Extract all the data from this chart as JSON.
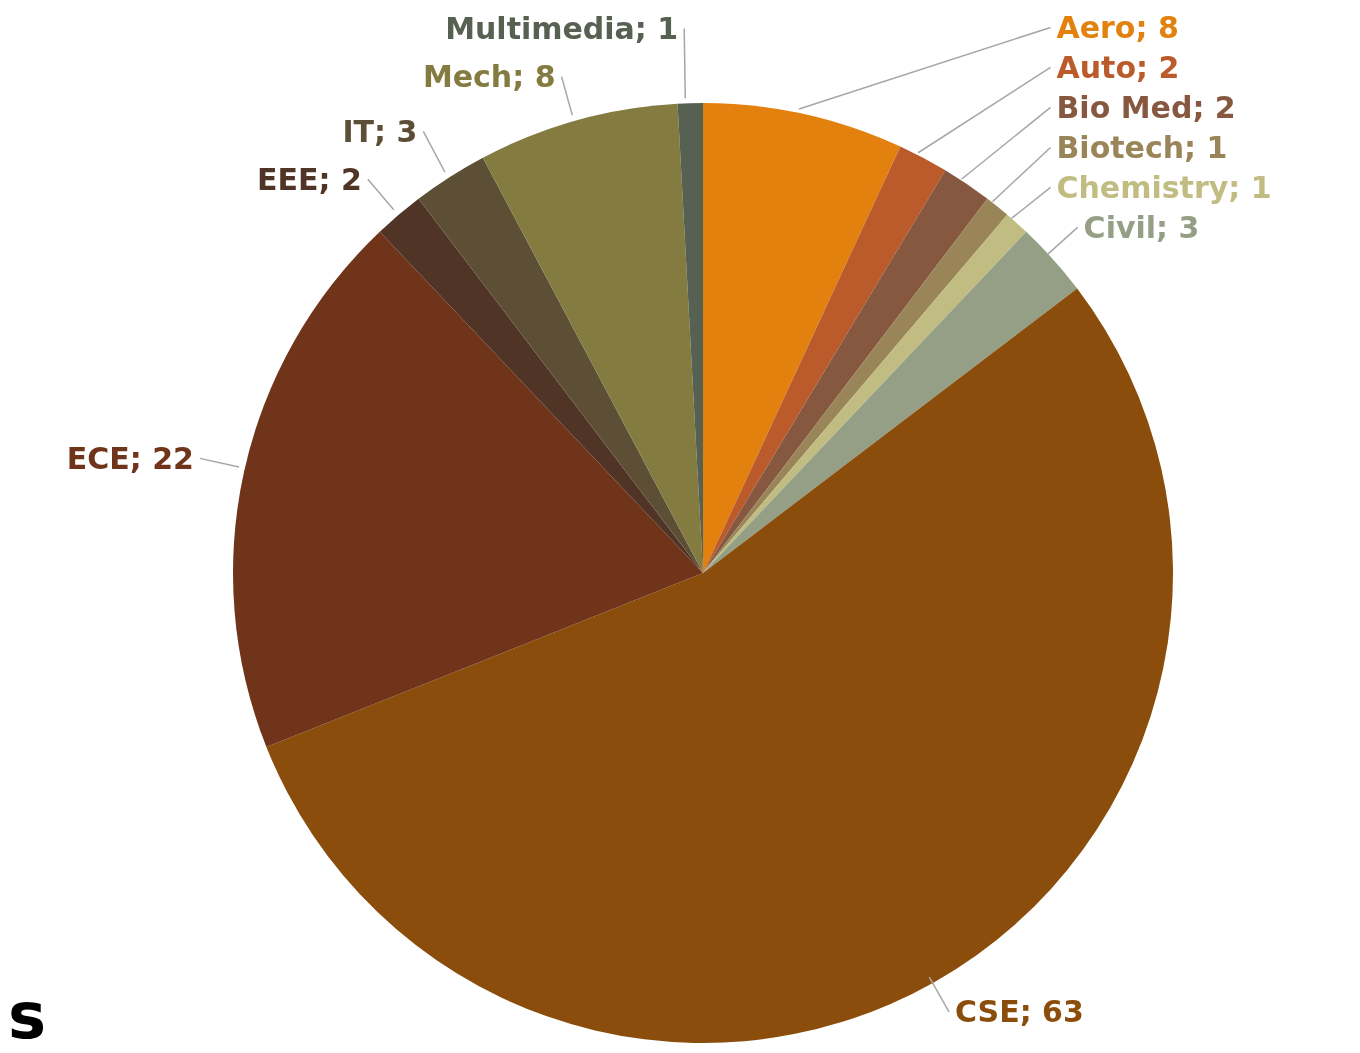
{
  "chart_data": {
    "type": "pie",
    "categories": [
      "Aero",
      "Auto",
      "Bio Med",
      "Biotech",
      "Chemistry",
      "Civil",
      "CSE",
      "ECE",
      "EEE",
      "IT",
      "Mech",
      "Multimedia"
    ],
    "values": [
      8,
      2,
      2,
      1,
      1,
      3,
      63,
      22,
      2,
      3,
      8,
      1
    ],
    "colors": [
      "#e3810f",
      "#bb5a2b",
      "#875840",
      "#9a8558",
      "#c1bd82",
      "#949f86",
      "#8a4d0b",
      "#70341a",
      "#503426",
      "#5d4f35",
      "#847b41",
      "#566152"
    ],
    "value_labels": [
      "; 8",
      "; 2",
      "; 2",
      "; 1",
      "; 1",
      "; 3",
      "; 63",
      "; 22",
      "; 2",
      "; 3",
      "; 8",
      "; 1"
    ],
    "annotations": [
      "s"
    ]
  }
}
